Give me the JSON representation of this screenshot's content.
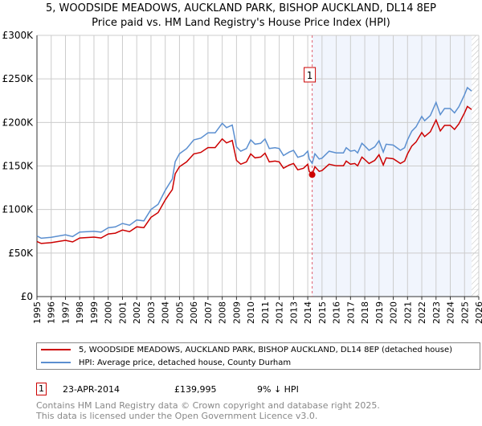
{
  "title_line1": "5, WOODSIDE MEADOWS, AUCKLAND PARK, BISHOP AUCKLAND, DL14 8EP",
  "title_line2": "Price paid vs. HM Land Registry's House Price Index (HPI)",
  "chart_data": {
    "type": "line",
    "xlim": [
      1995,
      2026
    ],
    "ylim": [
      0,
      300000
    ],
    "y_ticks": [
      0,
      50000,
      100000,
      150000,
      200000,
      250000,
      300000
    ],
    "y_tick_labels": [
      "£0",
      "£50K",
      "£100K",
      "£150K",
      "£200K",
      "£250K",
      "£300K"
    ],
    "x_ticks": [
      "1995",
      "1996",
      "1997",
      "1998",
      "1999",
      "2000",
      "2001",
      "2002",
      "2003",
      "2004",
      "2005",
      "2006",
      "2007",
      "2008",
      "2009",
      "2010",
      "2011",
      "2012",
      "2013",
      "2014",
      "2015",
      "2016",
      "2017",
      "2018",
      "2019",
      "2020",
      "2021",
      "2022",
      "2023",
      "2024",
      "2025",
      "2026"
    ],
    "grid": true,
    "x": [
      1995,
      1995.3,
      1996,
      1997,
      1997.5,
      1998,
      1999,
      1999.5,
      2000,
      2000.5,
      2001,
      2001.5,
      2002,
      2002.5,
      2003,
      2003.5,
      2004,
      2004.3,
      2004.5,
      2004.7,
      2005,
      2005.5,
      2006,
      2006.5,
      2007,
      2007.5,
      2008,
      2008.3,
      2008.7,
      2009,
      2009.3,
      2009.7,
      2010,
      2010.3,
      2010.7,
      2011,
      2011.3,
      2011.7,
      2012,
      2012.3,
      2012.7,
      2013,
      2013.3,
      2013.7,
      2014,
      2014.1,
      2014.31,
      2014.5,
      2014.8,
      2015,
      2015.5,
      2016,
      2016.5,
      2016.7,
      2017,
      2017.3,
      2017.5,
      2017.8,
      2018,
      2018.3,
      2018.7,
      2019,
      2019.3,
      2019.5,
      2020,
      2020.5,
      2020.8,
      2021,
      2021.3,
      2021.6,
      2022,
      2022.2,
      2022.6,
      2023,
      2023.3,
      2023.6,
      2024,
      2024.3,
      2024.6,
      2025,
      2025.2,
      2025.5
    ],
    "series": [
      {
        "name": "5, WOODSIDE MEADOWS, AUCKLAND PARK, BISHOP AUCKLAND, DL14 8EP (detached house)",
        "color": "#cc0000",
        "values": [
          63300,
          61000,
          61900,
          64600,
          62800,
          67300,
          68300,
          67300,
          71900,
          72800,
          76400,
          74600,
          80100,
          79200,
          91000,
          96500,
          111000,
          118300,
          122900,
          141000,
          149200,
          154700,
          163800,
          165600,
          171100,
          171100,
          181100,
          176500,
          179300,
          156500,
          152000,
          154700,
          163800,
          159300,
          160200,
          164700,
          154700,
          155600,
          154700,
          147400,
          151100,
          152900,
          145600,
          147400,
          152000,
          143800,
          139995,
          149200,
          143800,
          144700,
          152000,
          150200,
          150200,
          155600,
          152000,
          152900,
          150200,
          160200,
          157400,
          152900,
          156500,
          162900,
          151100,
          159300,
          158300,
          152900,
          155600,
          163800,
          172900,
          177500,
          188400,
          183800,
          189300,
          202900,
          190200,
          196600,
          196600,
          192000,
          198400,
          211100,
          218400,
          214800
        ]
      },
      {
        "name": "HPI: Average price, detached house, County Durham",
        "color": "#5b8fd0",
        "values": [
          69600,
          67000,
          68000,
          71000,
          69000,
          74000,
          75000,
          74000,
          79000,
          80000,
          84000,
          82000,
          88000,
          87000,
          100000,
          106000,
          122000,
          130000,
          135000,
          155000,
          164000,
          170000,
          180000,
          182000,
          188000,
          188000,
          199000,
          194000,
          197000,
          172000,
          167000,
          170000,
          180000,
          175000,
          176000,
          181000,
          170000,
          171000,
          170000,
          162000,
          166000,
          168000,
          160000,
          162000,
          167000,
          158000,
          153000,
          164000,
          158000,
          159000,
          167000,
          165000,
          165000,
          171000,
          167000,
          168000,
          165000,
          176000,
          173000,
          168000,
          172000,
          179000,
          166000,
          175000,
          174000,
          168000,
          171000,
          180000,
          190000,
          195000,
          207000,
          202000,
          208000,
          223000,
          209000,
          216000,
          216000,
          211000,
          218000,
          232000,
          240000,
          236000
        ]
      }
    ],
    "sale_marker": {
      "label": "1",
      "x": 2014.31,
      "y": 139995
    },
    "shaded_from": 2014.31,
    "hatched_from": 2025.5
  },
  "legend": {
    "red_label": "5, WOODSIDE MEADOWS, AUCKLAND PARK, BISHOP AUCKLAND, DL14 8EP (detached house)",
    "blue_label": "HPI: Average price, detached house, County Durham"
  },
  "sale": {
    "num": "1",
    "date": "23-APR-2014",
    "price": "£139,995",
    "delta": "9% ↓ HPI"
  },
  "footer": {
    "line1": "Contains HM Land Registry data © Crown copyright and database right 2025.",
    "line2": "This data is licensed under the Open Government Licence v3.0."
  }
}
